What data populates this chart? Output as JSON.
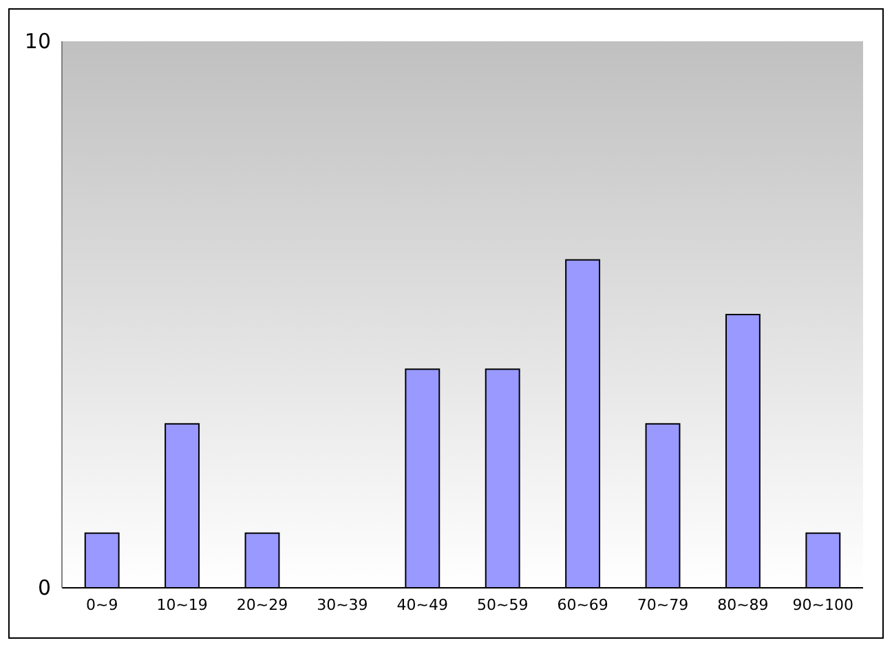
{
  "chart_data": {
    "type": "bar",
    "categories": [
      "0~9",
      "10~19",
      "20~29",
      "30~39",
      "40~49",
      "50~59",
      "60~69",
      "70~79",
      "80~89",
      "90~100"
    ],
    "values": [
      1,
      3,
      1,
      0,
      4,
      4,
      6,
      3,
      5,
      1
    ],
    "color": "#9999ff",
    "ylim": [
      0,
      10
    ],
    "yticks": [
      0,
      10
    ]
  }
}
